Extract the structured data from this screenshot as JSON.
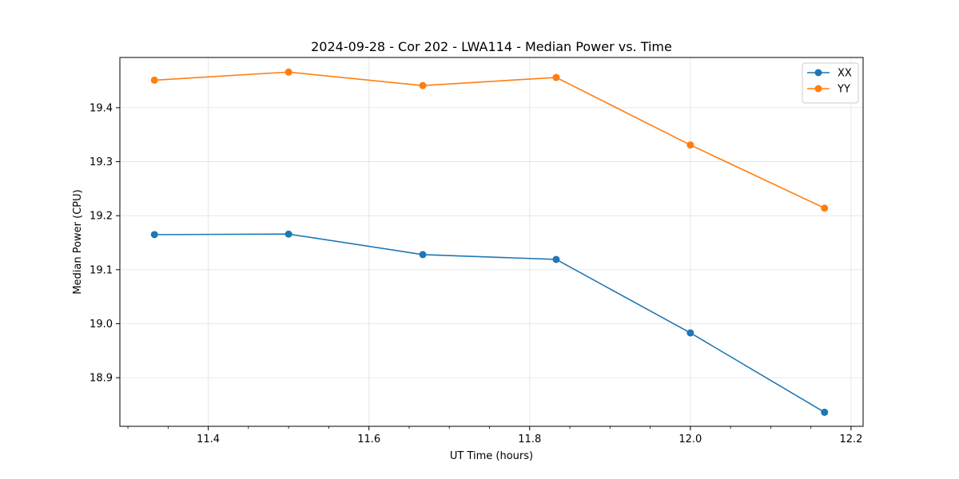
{
  "chart_data": {
    "type": "line",
    "title": "2024-09-28 - Cor 202 - LWA114 - Median Power vs. Time",
    "xlabel": "UT Time (hours)",
    "ylabel": "Median Power (CPU)",
    "xlim": [
      11.29,
      12.215
    ],
    "ylim": [
      18.81,
      19.493
    ],
    "xticks": [
      11.4,
      11.6,
      11.8,
      12.0,
      12.2
    ],
    "xtick_labels": [
      "11.4",
      "11.6",
      "11.8",
      "12.0",
      "12.2"
    ],
    "xminor_ticks": [
      11.3,
      11.35,
      11.45,
      11.5,
      11.55,
      11.65,
      11.7,
      11.75,
      11.85,
      11.9,
      11.95,
      12.05,
      12.1,
      12.15
    ],
    "yticks": [
      18.9,
      19.0,
      19.1,
      19.2,
      19.3,
      19.4
    ],
    "ytick_labels": [
      "18.9",
      "19.0",
      "19.1",
      "19.2",
      "19.3",
      "19.4"
    ],
    "grid": true,
    "legend_position": "top-right",
    "x": [
      11.333,
      11.5,
      11.667,
      11.833,
      12.0,
      12.167
    ],
    "series": [
      {
        "name": "XX",
        "color": "#1f77b4",
        "values": [
          19.165,
          19.166,
          19.128,
          19.119,
          18.983,
          18.836
        ]
      },
      {
        "name": "YY",
        "color": "#ff7f0e",
        "values": [
          19.451,
          19.466,
          19.441,
          19.456,
          19.331,
          19.214
        ]
      }
    ]
  }
}
